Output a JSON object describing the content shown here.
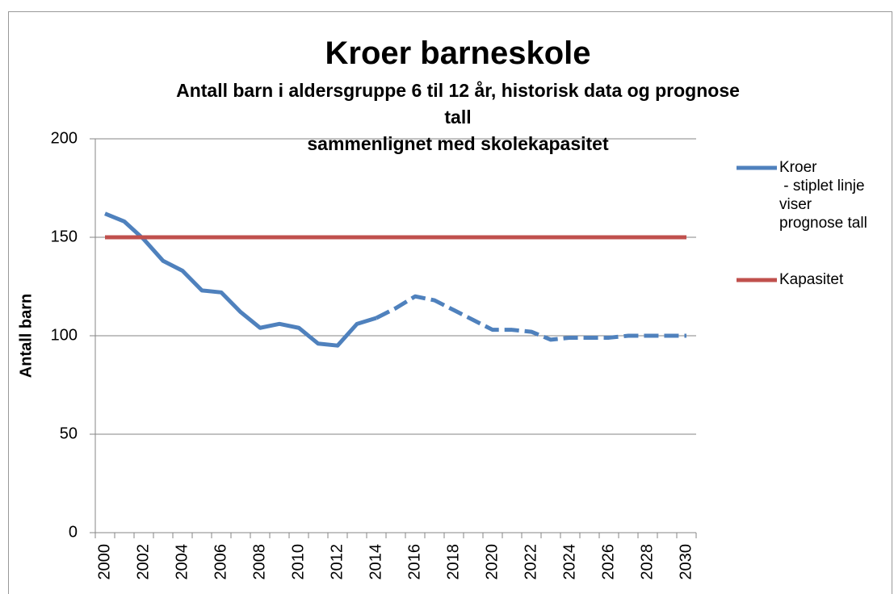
{
  "chart_data": {
    "type": "line",
    "title": "Kroer barneskole",
    "subtitle": "Antall barn i aldersgruppe 6 til 12 år, historisk data og prognose\ntall\nsammenlignet med skolekapasitet",
    "y_label": "Antall barn",
    "categories": [
      "2000",
      null,
      "2002",
      null,
      "2004",
      null,
      "2006",
      null,
      "2008",
      null,
      "2010",
      null,
      "2012",
      null,
      "2014",
      null,
      "2016",
      null,
      "2018",
      null,
      "2020",
      null,
      "2022",
      null,
      "2024",
      null,
      "2026",
      null,
      "2028",
      null,
      "2030"
    ],
    "series": [
      {
        "name": "Kroer\n - stiplet linje\nviser\nprognose tall",
        "color": "#4f81bd",
        "dashed_from": 14,
        "values": [
          162,
          158,
          149,
          138,
          133,
          123,
          122,
          112,
          104,
          106,
          104,
          96,
          95,
          106,
          109,
          114,
          120,
          118,
          113,
          108,
          103,
          103,
          102,
          98,
          99,
          99,
          99,
          100,
          100,
          100,
          100
        ]
      },
      {
        "name": "Kapasitet",
        "color": "#c0504d",
        "values": [
          150,
          150,
          150,
          150,
          150,
          150,
          150,
          150,
          150,
          150,
          150,
          150,
          150,
          150,
          150,
          150,
          150,
          150,
          150,
          150,
          150,
          150,
          150,
          150,
          150,
          150,
          150,
          150,
          150,
          150,
          150
        ]
      }
    ],
    "ylim": [
      0,
      200
    ],
    "yticks": [
      0,
      50,
      100,
      150,
      200
    ],
    "grid": true
  }
}
